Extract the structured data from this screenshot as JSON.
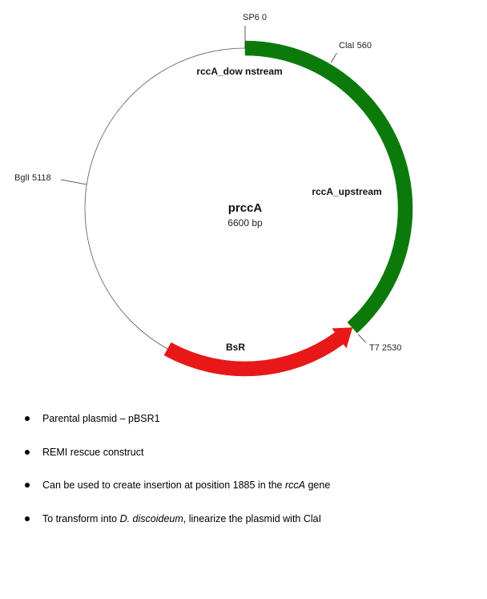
{
  "plasmid": {
    "name": "prccA",
    "size_label": "6600 bp",
    "length_bp": 6600
  },
  "features": [
    {
      "name": "rccA_downstream",
      "label": "rccA_dow nstream",
      "start": 0,
      "end": 880,
      "color": "#0b7a0b",
      "direction": "none"
    },
    {
      "name": "rccA_upstream",
      "label": "rccA_upstream",
      "start": 880,
      "end": 2530,
      "color": "#0b7a0b",
      "direction": "none"
    },
    {
      "name": "BsR",
      "label": "BsR",
      "start": 3830,
      "end": 2530,
      "color": "#e81818",
      "direction": "reverse"
    }
  ],
  "sites": [
    {
      "name": "SP6",
      "label": "SP6 0",
      "position": 0
    },
    {
      "name": "ClaI",
      "label": "ClaI  560",
      "position": 560
    },
    {
      "name": "T7",
      "label": "T7 2530",
      "position": 2530
    },
    {
      "name": "BglI",
      "label": "BglI  5118",
      "position": 5118
    }
  ],
  "notes": {
    "items": [
      {
        "parts": [
          {
            "text": "Parental plasmid – pBSR1",
            "italic": false
          }
        ]
      },
      {
        "parts": [
          {
            "text": "REMI rescue construct",
            "italic": false
          }
        ]
      },
      {
        "parts": [
          {
            "text": "Can be used to create insertion at position 1885  in the ",
            "italic": false
          },
          {
            "text": "rccA",
            "italic": true
          },
          {
            "text": " gene",
            "italic": false
          }
        ]
      },
      {
        "parts": [
          {
            "text": "To transform into ",
            "italic": false
          },
          {
            "text": "D.  discoideum",
            "italic": true
          },
          {
            "text": ", linearize the plasmid with ClaI",
            "italic": false
          }
        ]
      }
    ]
  }
}
